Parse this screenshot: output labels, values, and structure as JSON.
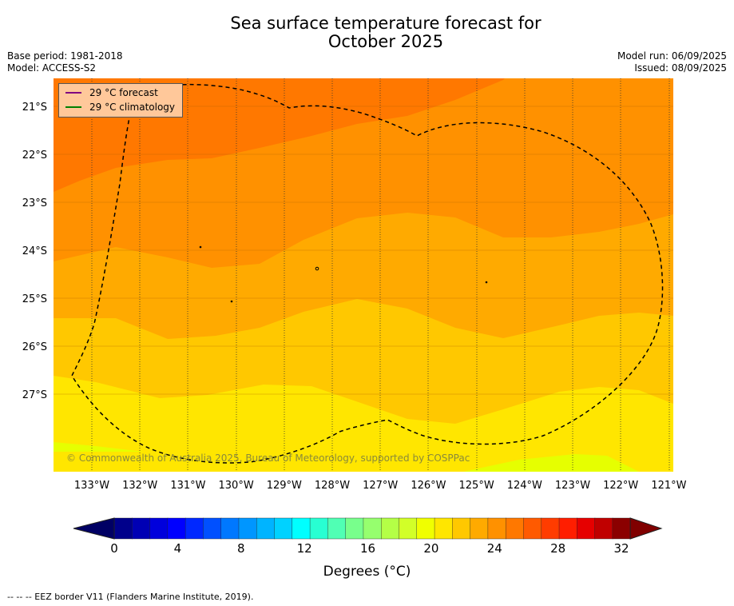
{
  "title_line1": "Sea surface temperature forecast for",
  "title_line2": "October 2025",
  "base_period": "Base period: 1981-2018",
  "model": "Model: ACCESS-S2",
  "model_run": "Model run: 06/09/2025",
  "issued": "Issued: 08/09/2025",
  "legend": {
    "forecast": {
      "label": "29 °C  forecast",
      "color": "#800080"
    },
    "climatology": {
      "label": "29 °C  climatology",
      "color": "#008000"
    }
  },
  "copyright": "© Commonwealth of Australia 2025, Bureau of Meteorology, supported by COSPPac",
  "lon_ticks": [
    "133°W",
    "132°W",
    "131°W",
    "130°W",
    "129°W",
    "128°W",
    "127°W",
    "126°W",
    "125°W",
    "124°W",
    "123°W",
    "122°W",
    "121°W"
  ],
  "lat_ticks": [
    "21°S",
    "22°S",
    "23°S",
    "24°S",
    "25°S",
    "26°S",
    "27°S"
  ],
  "colorbar": {
    "labels": [
      "0",
      "4",
      "8",
      "12",
      "16",
      "20",
      "24",
      "28",
      "32"
    ],
    "colors": [
      "#00008b",
      "#0000b4",
      "#0000dc",
      "#0000ff",
      "#0028ff",
      "#0050ff",
      "#0078ff",
      "#0096ff",
      "#00b4ff",
      "#00d2ff",
      "#00ffff",
      "#28ffd2",
      "#50ffb4",
      "#78ff8c",
      "#96ff6e",
      "#b4ff46",
      "#d2ff28",
      "#f0ff00",
      "#ffe600",
      "#ffc800",
      "#ffaa00",
      "#ff9100",
      "#ff7800",
      "#ff5a00",
      "#ff3c00",
      "#ff1e00",
      "#e60000",
      "#c00000",
      "#8b0000"
    ],
    "under": "#000064",
    "over": "#800000"
  },
  "units": "Degrees (°C)",
  "footer": "-- -- -- EEZ border V11 (Flanders Marine Institute, 2019)."
}
